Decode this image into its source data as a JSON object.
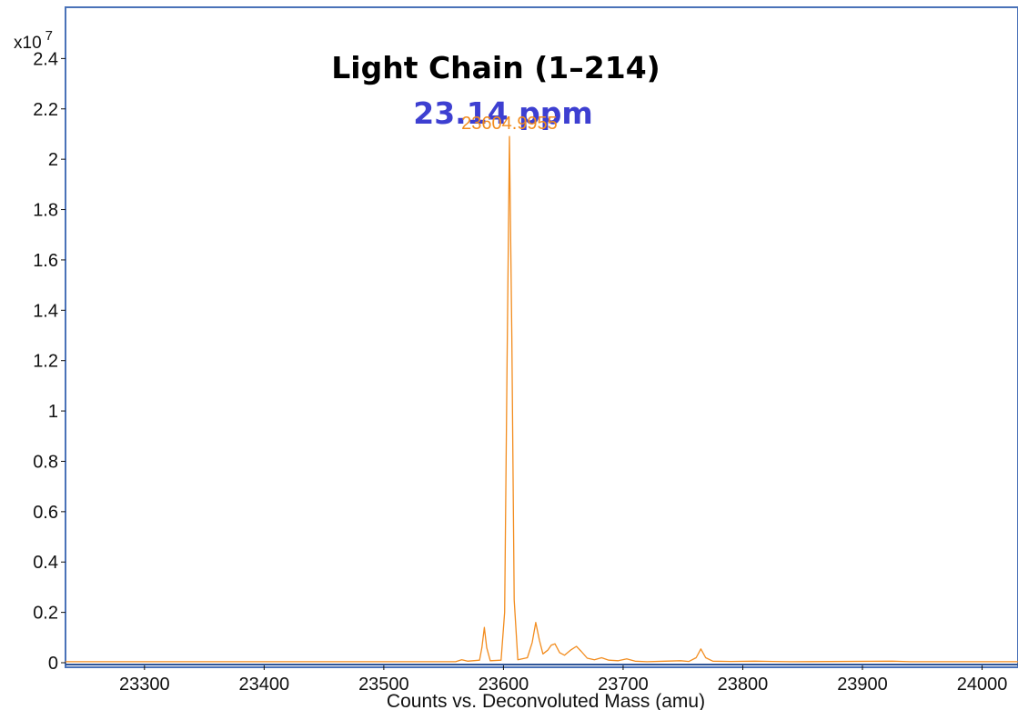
{
  "chart_data": {
    "type": "line",
    "title": "Light Chain (1–214)",
    "subtitle": "23.14 ppm",
    "xlabel": "Counts vs. Deconvoluted Mass (amu)",
    "y_multiplier": "x10",
    "y_multiplier_exp": "7",
    "xlim": [
      23234,
      24030
    ],
    "ylim": [
      0,
      2.6
    ],
    "x_ticks": [
      23300,
      23400,
      23500,
      23600,
      23700,
      23800,
      23900,
      24000
    ],
    "y_ticks": [
      0,
      0.2,
      0.4,
      0.6,
      0.8,
      1,
      1.2,
      1.4,
      1.6,
      1.8,
      2,
      2.2,
      2.4
    ],
    "grid": false,
    "peak_label": {
      "text": "23604.9955",
      "x": 23604.9955,
      "y": 2.09
    },
    "series": [
      {
        "color": "#f28c1e",
        "points": [
          [
            23234,
            0.004
          ],
          [
            23560,
            0.004
          ],
          [
            23565,
            0.012
          ],
          [
            23570,
            0.006
          ],
          [
            23580,
            0.01
          ],
          [
            23582,
            0.06
          ],
          [
            23584,
            0.14
          ],
          [
            23586,
            0.06
          ],
          [
            23589,
            0.008
          ],
          [
            23598,
            0.01
          ],
          [
            23601,
            0.2
          ],
          [
            23603,
            1.2
          ],
          [
            23605,
            2.09
          ],
          [
            23607,
            1.3
          ],
          [
            23609,
            0.25
          ],
          [
            23612,
            0.012
          ],
          [
            23620,
            0.02
          ],
          [
            23624,
            0.08
          ],
          [
            23627,
            0.16
          ],
          [
            23630,
            0.09
          ],
          [
            23633,
            0.035
          ],
          [
            23637,
            0.05
          ],
          [
            23640,
            0.07
          ],
          [
            23643,
            0.075
          ],
          [
            23647,
            0.04
          ],
          [
            23651,
            0.03
          ],
          [
            23656,
            0.05
          ],
          [
            23661,
            0.065
          ],
          [
            23665,
            0.045
          ],
          [
            23670,
            0.018
          ],
          [
            23676,
            0.012
          ],
          [
            23682,
            0.02
          ],
          [
            23688,
            0.01
          ],
          [
            23696,
            0.008
          ],
          [
            23703,
            0.015
          ],
          [
            23710,
            0.006
          ],
          [
            23720,
            0.004
          ],
          [
            23735,
            0.006
          ],
          [
            23748,
            0.008
          ],
          [
            23755,
            0.005
          ],
          [
            23761,
            0.02
          ],
          [
            23765,
            0.055
          ],
          [
            23769,
            0.02
          ],
          [
            23775,
            0.006
          ],
          [
            23790,
            0.005
          ],
          [
            23810,
            0.006
          ],
          [
            23825,
            0.005
          ],
          [
            23840,
            0.004
          ],
          [
            23925,
            0.006
          ],
          [
            23940,
            0.004
          ],
          [
            24030,
            0.004
          ]
        ]
      }
    ]
  }
}
